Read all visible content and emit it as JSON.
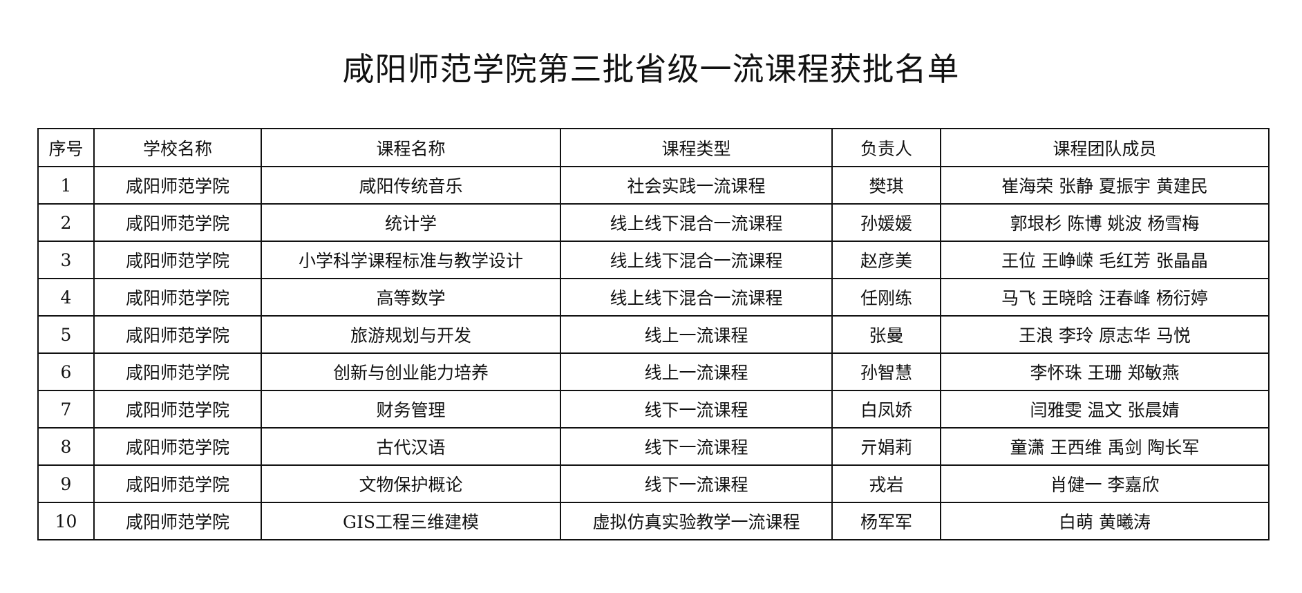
{
  "title": "咸阳师范学院第三批省级一流课程获批名单",
  "columns": [
    "序号",
    "学校名称",
    "课程名称",
    "课程类型",
    "负责人",
    "课程团队成员"
  ],
  "rows": [
    [
      "1",
      "咸阳师范学院",
      "咸阳传统音乐",
      "社会实践一流课程",
      "樊琪",
      "崔海荣 张静 夏振宇 黄建民"
    ],
    [
      "2",
      "咸阳师范学院",
      "统计学",
      "线上线下混合一流课程",
      "孙媛媛",
      "郭垠杉 陈博 姚波 杨雪梅"
    ],
    [
      "3",
      "咸阳师范学院",
      "小学科学课程标准与教学设计",
      "线上线下混合一流课程",
      "赵彦美",
      "王位 王峥嵘 毛红芳 张晶晶"
    ],
    [
      "4",
      "咸阳师范学院",
      "高等数学",
      "线上线下混合一流课程",
      "任刚练",
      "马飞 王晓晗 汪春峰 杨衍婷"
    ],
    [
      "5",
      "咸阳师范学院",
      "旅游规划与开发",
      "线上一流课程",
      "张曼",
      "王浪 李玲 原志华 马悦"
    ],
    [
      "6",
      "咸阳师范学院",
      "创新与创业能力培养",
      "线上一流课程",
      "孙智慧",
      "李怀珠 王珊 郑敏燕"
    ],
    [
      "7",
      "咸阳师范学院",
      "财务管理",
      "线下一流课程",
      "白凤娇",
      "闫雅雯 温文 张晨婧"
    ],
    [
      "8",
      "咸阳师范学院",
      "古代汉语",
      "线下一流课程",
      "亓娟莉",
      "童潇 王西维 禹剑 陶长军"
    ],
    [
      "9",
      "咸阳师范学院",
      "文物保护概论",
      "线下一流课程",
      "戎岩",
      "肖健一 李嘉欣"
    ],
    [
      "10",
      "咸阳师范学院",
      "GIS工程三维建模",
      "虚拟仿真实验教学一流课程",
      "杨军军",
      "白萌 黄曦涛"
    ]
  ]
}
